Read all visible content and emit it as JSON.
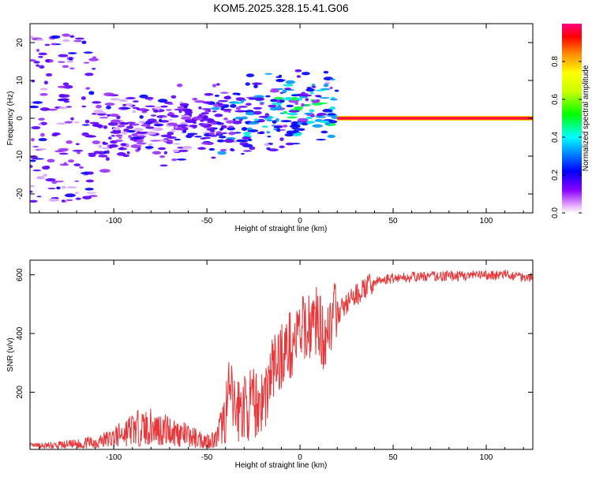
{
  "title": "KOM5.2025.328.15.41.G06",
  "chart_data": [
    {
      "type": "heatmap",
      "xlabel": "Height of straight line (km)",
      "ylabel": "Frequency (Hz)",
      "xlim": [
        -145,
        125
      ],
      "ylim": [
        -25,
        25
      ],
      "xticks": [
        -100,
        -50,
        0,
        50,
        100
      ],
      "xtick_labels": [
        "-100",
        "-50",
        "0",
        "50",
        "100"
      ],
      "yticks": [
        -20,
        -10,
        0,
        10,
        20
      ],
      "ytick_labels": [
        "-20",
        "-10",
        "0",
        "10",
        "20"
      ],
      "colorbar": {
        "label": "Normalized spectral amplitude",
        "range": [
          0,
          1
        ],
        "ticks": [
          0.0,
          0.2,
          0.4,
          0.6,
          0.8
        ],
        "tick_labels": [
          "0.0",
          "0.2",
          "0.4",
          "0.6",
          "0.8"
        ]
      },
      "features": [
        {
          "name": "steady-carrier",
          "x_range": [
            20,
            125
          ],
          "frequency": 0,
          "amplitude": 0.95
        },
        {
          "name": "scatter-band",
          "x_range": [
            -145,
            20
          ],
          "frequency_range": [
            -22,
            22
          ],
          "amplitude_range": [
            0.05,
            0.5
          ]
        }
      ]
    },
    {
      "type": "line",
      "xlabel": "Height of straight line (km)",
      "ylabel": "SNR (v/v)",
      "xlim": [
        -145,
        125
      ],
      "ylim": [
        5,
        650
      ],
      "xticks": [
        -100,
        -50,
        0,
        50,
        100
      ],
      "xtick_labels": [
        "-100",
        "-50",
        "0",
        "50",
        "100"
      ],
      "yticks": [
        200,
        400,
        600
      ],
      "ytick_labels": [
        "200",
        "400",
        "600"
      ],
      "series": [
        {
          "name": "SNR",
          "color": "#e8373a",
          "x": [
            -145,
            -130,
            -120,
            -110,
            -100,
            -90,
            -80,
            -70,
            -60,
            -50,
            -45,
            -40,
            -38,
            -35,
            -30,
            -25,
            -20,
            -17,
            -15,
            -12,
            -10,
            -5,
            0,
            5,
            10,
            12,
            15,
            20,
            25,
            30,
            35,
            40,
            50,
            60,
            70,
            80,
            90,
            100,
            110,
            125
          ],
          "values": [
            15,
            18,
            22,
            30,
            45,
            75,
            80,
            70,
            50,
            35,
            40,
            120,
            200,
            140,
            150,
            160,
            170,
            220,
            280,
            300,
            330,
            360,
            400,
            430,
            450,
            380,
            430,
            470,
            500,
            530,
            555,
            575,
            590,
            592,
            595,
            596,
            597,
            598,
            600,
            592
          ]
        }
      ]
    }
  ]
}
